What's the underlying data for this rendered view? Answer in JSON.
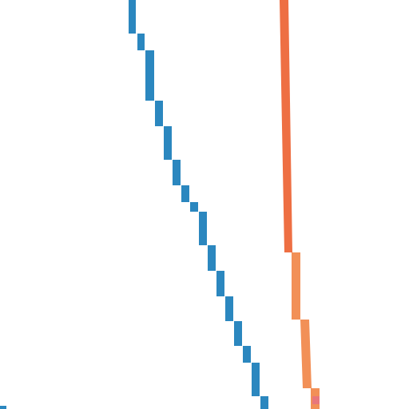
{
  "scene": {
    "background": "#ffffff",
    "paths": [
      {
        "name": "blue-stepped-path",
        "color": "#2b87bf"
      },
      {
        "name": "orange-stepped-path",
        "color": "#ee6f43",
        "color_lower": "#f29057",
        "tip_color": "#e8777b"
      }
    ],
    "edge_marker": {
      "name": "edge-marker",
      "color": "#2b87bf"
    }
  }
}
